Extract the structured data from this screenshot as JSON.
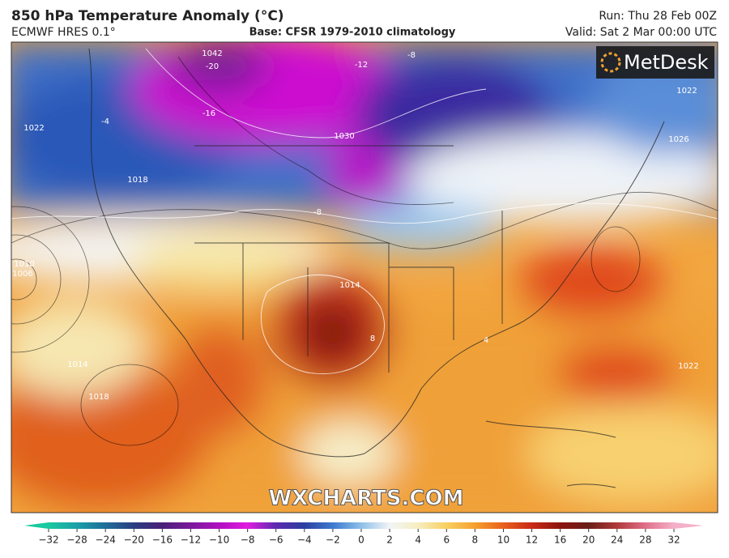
{
  "header": {
    "title": "850 hPa Temperature Anomaly (°C)",
    "model": "ECMWF HRES 0.1°",
    "base": "Base: CFSR 1979-2010 climatology",
    "run": "Run: Thu 28 Feb 00Z",
    "valid": "Valid: Sat 2 Mar 00:00 UTC"
  },
  "logo": "MetDesk",
  "watermark": "WXCHARTS.COM",
  "map": {
    "labels": [
      "-20",
      "1042",
      "-16",
      "-12",
      "-8",
      "1030",
      "1022",
      "1026",
      "1018",
      "1010",
      "1006",
      "1014",
      "1022",
      "-8",
      "-4",
      "4",
      "8",
      "1018",
      "1014",
      "1022"
    ]
  },
  "colorbar": {
    "ticks": [
      {
        "value": -32,
        "label": "−32"
      },
      {
        "value": -28,
        "label": "−28"
      },
      {
        "value": -24,
        "label": "−24"
      },
      {
        "value": -20,
        "label": "−20"
      },
      {
        "value": -16,
        "label": "−16"
      },
      {
        "value": -12,
        "label": "−12"
      },
      {
        "value": -10,
        "label": "−10"
      },
      {
        "value": -8,
        "label": "−8"
      },
      {
        "value": -6,
        "label": "−6"
      },
      {
        "value": -4,
        "label": "−4"
      },
      {
        "value": -2,
        "label": "−2"
      },
      0,
      2,
      4,
      6,
      8,
      10,
      12,
      16,
      20,
      24,
      28,
      32
    ],
    "colors": [
      "#19c9a0",
      "#1c9fa8",
      "#1f6e9a",
      "#2a3d80",
      "#4a1f78",
      "#7a1a9a",
      "#b010c0",
      "#e01ce0",
      "#5b2ab0",
      "#2c3fa0",
      "#3d7ad0",
      "#8fc0e8",
      "#f2f4f6",
      "#f6eec0",
      "#f8d060",
      "#f5a030",
      "#e8601c",
      "#c82a16",
      "#8c1410",
      "#6a1e18",
      "#b03a3a",
      "#e0708a",
      "#f4b0c8"
    ]
  }
}
